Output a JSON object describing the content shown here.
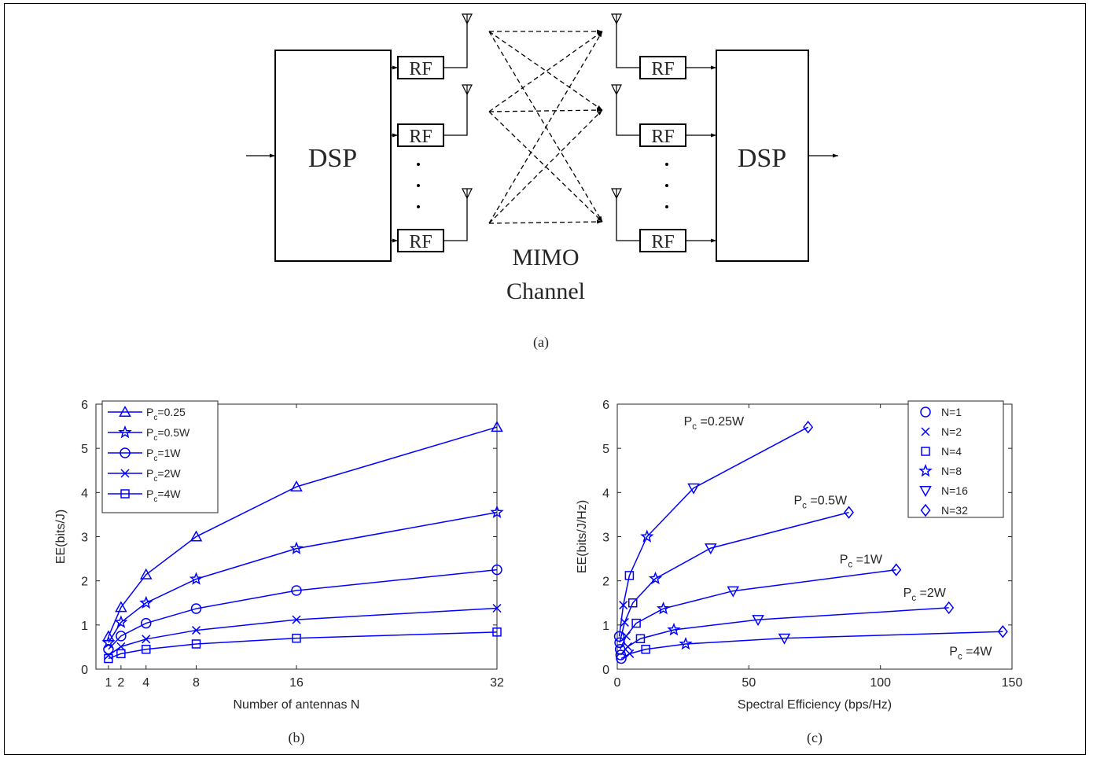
{
  "diagram": {
    "tx_dsp_label": "DSP",
    "rx_dsp_label": "DSP",
    "rf_label": "RF",
    "channel_label_line1": "MIMO",
    "channel_label_line2": "Channel",
    "caption": "(a)"
  },
  "chart_data": [
    {
      "type": "line",
      "caption": "(b)",
      "xlabel": "Number of antennas N",
      "ylabel": "EE(bits/J)",
      "xlim": [
        0,
        32
      ],
      "ylim": [
        0,
        6
      ],
      "xticks": [
        1,
        2,
        4,
        8,
        16,
        32
      ],
      "yticks": [
        0,
        1,
        2,
        3,
        4,
        5,
        6
      ],
      "grid": false,
      "legend_position": "top-left",
      "color": "#0000ff",
      "x": [
        1,
        2,
        4,
        8,
        16,
        32
      ],
      "series": [
        {
          "name": "P_c=0.25",
          "sub": "c",
          "name_before": "P",
          "name_after": "=0.25",
          "marker": "triangle-up",
          "values": [
            0.74,
            1.4,
            2.14,
            3.0,
            4.13,
            5.48
          ]
        },
        {
          "name": "P_c=0.5W",
          "sub": "c",
          "name_before": "P",
          "name_after": "=0.5W",
          "marker": "star",
          "values": [
            0.6,
            1.06,
            1.5,
            2.04,
            2.73,
            3.55
          ]
        },
        {
          "name": "P_c=1W",
          "sub": "c",
          "name_before": "P",
          "name_after": "=1W",
          "marker": "circle",
          "values": [
            0.45,
            0.75,
            1.04,
            1.37,
            1.78,
            2.25
          ]
        },
        {
          "name": "P_c=2W",
          "sub": "c",
          "name_before": "P",
          "name_after": "=2W",
          "marker": "x",
          "values": [
            0.31,
            0.51,
            0.68,
            0.88,
            1.12,
            1.38
          ]
        },
        {
          "name": "P_c=4W",
          "sub": "c",
          "name_before": "P",
          "name_after": "=4W",
          "marker": "square",
          "values": [
            0.24,
            0.35,
            0.45,
            0.57,
            0.7,
            0.84
          ]
        }
      ]
    },
    {
      "type": "line",
      "caption": "(c)",
      "xlabel": "Spectral Efficiency (bps/Hz)",
      "ylabel": "EE(bits/J/Hz)",
      "xlim": [
        0,
        150
      ],
      "ylim": [
        0,
        6
      ],
      "xticks": [
        0,
        50,
        100,
        150
      ],
      "yticks": [
        0,
        1,
        2,
        3,
        4,
        5,
        6
      ],
      "grid": false,
      "legend_position": "top-right",
      "color": "#0000ff",
      "point_markers": [
        "circle",
        "x",
        "square",
        "star",
        "triangle-down",
        "diamond"
      ],
      "legend": [
        "N=1",
        "N=2",
        "N=4",
        "N=8",
        "N=16",
        "N=32"
      ],
      "series": [
        {
          "name": "P_c =0.25W",
          "sub": "c",
          "name_before": "P",
          "name_after": " =0.25W",
          "x": [
            0.75,
            2.3,
            4.6,
            11.3,
            29.0,
            72.5
          ],
          "values": [
            0.74,
            1.45,
            2.12,
            3.0,
            4.1,
            5.48
          ]
        },
        {
          "name": "P_c =0.5W",
          "sub": "c",
          "name_before": "P",
          "name_after": " =0.5W",
          "x": [
            0.9,
            2.8,
            5.9,
            14.5,
            35.5,
            88.0
          ],
          "values": [
            0.6,
            1.06,
            1.5,
            2.05,
            2.74,
            3.55
          ]
        },
        {
          "name": "P_c =1W",
          "sub": "c",
          "name_before": "P",
          "name_after": " =1W",
          "x": [
            1.1,
            3.4,
            7.2,
            17.5,
            44.0,
            106.0
          ],
          "values": [
            0.45,
            0.75,
            1.04,
            1.37,
            1.77,
            2.25
          ]
        },
        {
          "name": "P_c =2W",
          "sub": "c",
          "name_before": "P",
          "name_after": " =2W",
          "x": [
            1.3,
            4.0,
            8.8,
            21.5,
            53.5,
            126.0
          ],
          "values": [
            0.32,
            0.51,
            0.69,
            0.89,
            1.12,
            1.39
          ]
        },
        {
          "name": "P_c =4W",
          "sub": "c",
          "name_before": "P",
          "name_after": " =4W",
          "x": [
            1.5,
            4.7,
            10.8,
            26.0,
            63.5,
            146.5
          ],
          "values": [
            0.24,
            0.35,
            0.45,
            0.57,
            0.7,
            0.85
          ]
        }
      ]
    }
  ]
}
